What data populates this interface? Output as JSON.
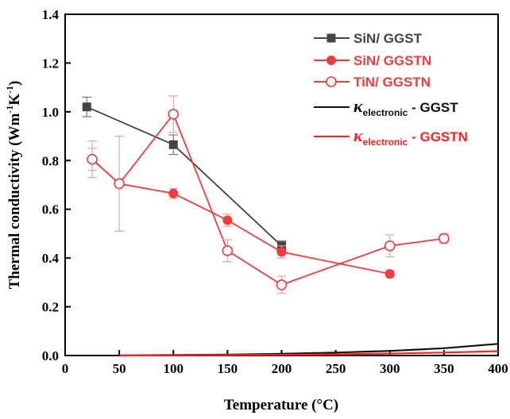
{
  "chart_data": {
    "type": "line",
    "xlabel": "Temperature (°C)",
    "ylabel": {
      "prefix": "Thermal conductivity (Wm",
      "sup1": "-1",
      "mid": "K",
      "sup2": "-1",
      "suffix": ")"
    },
    "xlim": [
      0,
      400
    ],
    "ylim": [
      0,
      1.4
    ],
    "xticks": [
      "0",
      "50",
      "100",
      "150",
      "200",
      "250",
      "300",
      "350",
      "400"
    ],
    "yticks": [
      "0.0",
      "0.2",
      "0.4",
      "0.6",
      "0.8",
      "1.0",
      "1.2",
      "1.4"
    ],
    "grid": false,
    "legend_position": "top-right",
    "series": [
      {
        "name": "SiN/ GGST",
        "marker": "square-filled",
        "color": "#444444",
        "x": [
          20,
          100,
          200
        ],
        "y": [
          1.02,
          0.865,
          0.45
        ],
        "err": [
          0.04,
          0.04,
          0.02
        ]
      },
      {
        "name": "SiN/ GGSTN",
        "marker": "circle-filled",
        "color": "#f03c3c",
        "x": [
          25,
          50,
          100,
          150,
          200,
          300
        ],
        "y": [
          0.805,
          0.705,
          0.665,
          0.555,
          0.425,
          0.335
        ],
        "err": [
          0.045,
          0.0,
          0.02,
          0.025,
          0.025,
          0.015
        ]
      },
      {
        "name": "TiN/ GGSTN",
        "marker": "circle-open",
        "color": "#f03c3c",
        "x": [
          25,
          50,
          100,
          150,
          200,
          300,
          350
        ],
        "y": [
          0.805,
          0.705,
          0.99,
          0.43,
          0.29,
          0.45,
          0.48
        ],
        "err": [
          0.075,
          0.195,
          0.075,
          0.045,
          0.035,
          0.045,
          0.02
        ]
      },
      {
        "name_symbol": "κ",
        "name_sub": "electronic",
        "name_tail": " - GGST",
        "marker": "none",
        "color": "#111111",
        "x": [
          50,
          100,
          150,
          200,
          250,
          300,
          350,
          400
        ],
        "y": [
          0.0,
          0.002,
          0.004,
          0.007,
          0.012,
          0.019,
          0.03,
          0.048
        ]
      },
      {
        "name_symbol": "κ",
        "name_sub": "electronic",
        "name_tail": " - GGSTN",
        "marker": "none",
        "color": "#ff2020",
        "x": [
          50,
          100,
          150,
          200,
          250,
          300,
          350,
          400
        ],
        "y": [
          0.0,
          0.001,
          0.002,
          0.003,
          0.005,
          0.008,
          0.012,
          0.018
        ]
      }
    ]
  }
}
